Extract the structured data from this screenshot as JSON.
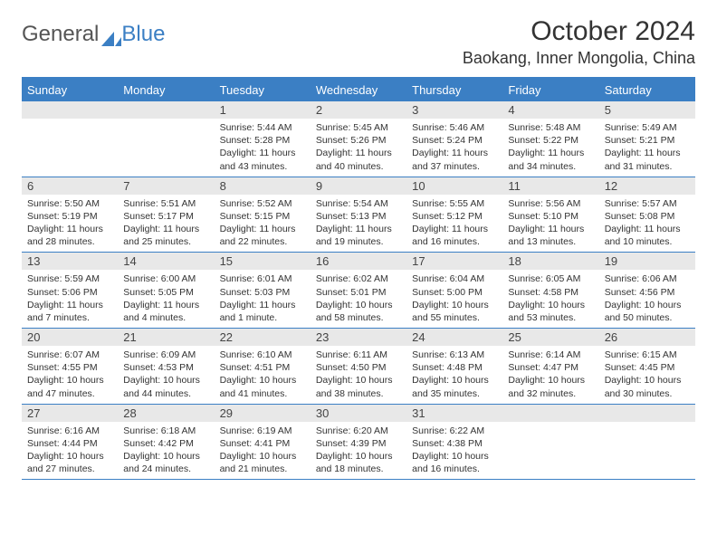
{
  "brand": {
    "part1": "General",
    "part2": "Blue"
  },
  "title": "October 2024",
  "location": "Baokang, Inner Mongolia, China",
  "colors": {
    "accent": "#3b7fc4",
    "dayHeaderBg": "#e8e8e8",
    "background": "#ffffff",
    "text": "#333333"
  },
  "typography": {
    "title_fontsize": 30,
    "location_fontsize": 18,
    "dow_fontsize": 13,
    "daynum_fontsize": 13,
    "body_fontsize": 10.5
  },
  "dow": [
    "Sunday",
    "Monday",
    "Tuesday",
    "Wednesday",
    "Thursday",
    "Friday",
    "Saturday"
  ],
  "weeks": [
    [
      {
        "n": "",
        "sr": "",
        "ss": "",
        "dl": ""
      },
      {
        "n": "",
        "sr": "",
        "ss": "",
        "dl": ""
      },
      {
        "n": "1",
        "sr": "Sunrise: 5:44 AM",
        "ss": "Sunset: 5:28 PM",
        "dl": "Daylight: 11 hours and 43 minutes."
      },
      {
        "n": "2",
        "sr": "Sunrise: 5:45 AM",
        "ss": "Sunset: 5:26 PM",
        "dl": "Daylight: 11 hours and 40 minutes."
      },
      {
        "n": "3",
        "sr": "Sunrise: 5:46 AM",
        "ss": "Sunset: 5:24 PM",
        "dl": "Daylight: 11 hours and 37 minutes."
      },
      {
        "n": "4",
        "sr": "Sunrise: 5:48 AM",
        "ss": "Sunset: 5:22 PM",
        "dl": "Daylight: 11 hours and 34 minutes."
      },
      {
        "n": "5",
        "sr": "Sunrise: 5:49 AM",
        "ss": "Sunset: 5:21 PM",
        "dl": "Daylight: 11 hours and 31 minutes."
      }
    ],
    [
      {
        "n": "6",
        "sr": "Sunrise: 5:50 AM",
        "ss": "Sunset: 5:19 PM",
        "dl": "Daylight: 11 hours and 28 minutes."
      },
      {
        "n": "7",
        "sr": "Sunrise: 5:51 AM",
        "ss": "Sunset: 5:17 PM",
        "dl": "Daylight: 11 hours and 25 minutes."
      },
      {
        "n": "8",
        "sr": "Sunrise: 5:52 AM",
        "ss": "Sunset: 5:15 PM",
        "dl": "Daylight: 11 hours and 22 minutes."
      },
      {
        "n": "9",
        "sr": "Sunrise: 5:54 AM",
        "ss": "Sunset: 5:13 PM",
        "dl": "Daylight: 11 hours and 19 minutes."
      },
      {
        "n": "10",
        "sr": "Sunrise: 5:55 AM",
        "ss": "Sunset: 5:12 PM",
        "dl": "Daylight: 11 hours and 16 minutes."
      },
      {
        "n": "11",
        "sr": "Sunrise: 5:56 AM",
        "ss": "Sunset: 5:10 PM",
        "dl": "Daylight: 11 hours and 13 minutes."
      },
      {
        "n": "12",
        "sr": "Sunrise: 5:57 AM",
        "ss": "Sunset: 5:08 PM",
        "dl": "Daylight: 11 hours and 10 minutes."
      }
    ],
    [
      {
        "n": "13",
        "sr": "Sunrise: 5:59 AM",
        "ss": "Sunset: 5:06 PM",
        "dl": "Daylight: 11 hours and 7 minutes."
      },
      {
        "n": "14",
        "sr": "Sunrise: 6:00 AM",
        "ss": "Sunset: 5:05 PM",
        "dl": "Daylight: 11 hours and 4 minutes."
      },
      {
        "n": "15",
        "sr": "Sunrise: 6:01 AM",
        "ss": "Sunset: 5:03 PM",
        "dl": "Daylight: 11 hours and 1 minute."
      },
      {
        "n": "16",
        "sr": "Sunrise: 6:02 AM",
        "ss": "Sunset: 5:01 PM",
        "dl": "Daylight: 10 hours and 58 minutes."
      },
      {
        "n": "17",
        "sr": "Sunrise: 6:04 AM",
        "ss": "Sunset: 5:00 PM",
        "dl": "Daylight: 10 hours and 55 minutes."
      },
      {
        "n": "18",
        "sr": "Sunrise: 6:05 AM",
        "ss": "Sunset: 4:58 PM",
        "dl": "Daylight: 10 hours and 53 minutes."
      },
      {
        "n": "19",
        "sr": "Sunrise: 6:06 AM",
        "ss": "Sunset: 4:56 PM",
        "dl": "Daylight: 10 hours and 50 minutes."
      }
    ],
    [
      {
        "n": "20",
        "sr": "Sunrise: 6:07 AM",
        "ss": "Sunset: 4:55 PM",
        "dl": "Daylight: 10 hours and 47 minutes."
      },
      {
        "n": "21",
        "sr": "Sunrise: 6:09 AM",
        "ss": "Sunset: 4:53 PM",
        "dl": "Daylight: 10 hours and 44 minutes."
      },
      {
        "n": "22",
        "sr": "Sunrise: 6:10 AM",
        "ss": "Sunset: 4:51 PM",
        "dl": "Daylight: 10 hours and 41 minutes."
      },
      {
        "n": "23",
        "sr": "Sunrise: 6:11 AM",
        "ss": "Sunset: 4:50 PM",
        "dl": "Daylight: 10 hours and 38 minutes."
      },
      {
        "n": "24",
        "sr": "Sunrise: 6:13 AM",
        "ss": "Sunset: 4:48 PM",
        "dl": "Daylight: 10 hours and 35 minutes."
      },
      {
        "n": "25",
        "sr": "Sunrise: 6:14 AM",
        "ss": "Sunset: 4:47 PM",
        "dl": "Daylight: 10 hours and 32 minutes."
      },
      {
        "n": "26",
        "sr": "Sunrise: 6:15 AM",
        "ss": "Sunset: 4:45 PM",
        "dl": "Daylight: 10 hours and 30 minutes."
      }
    ],
    [
      {
        "n": "27",
        "sr": "Sunrise: 6:16 AM",
        "ss": "Sunset: 4:44 PM",
        "dl": "Daylight: 10 hours and 27 minutes."
      },
      {
        "n": "28",
        "sr": "Sunrise: 6:18 AM",
        "ss": "Sunset: 4:42 PM",
        "dl": "Daylight: 10 hours and 24 minutes."
      },
      {
        "n": "29",
        "sr": "Sunrise: 6:19 AM",
        "ss": "Sunset: 4:41 PM",
        "dl": "Daylight: 10 hours and 21 minutes."
      },
      {
        "n": "30",
        "sr": "Sunrise: 6:20 AM",
        "ss": "Sunset: 4:39 PM",
        "dl": "Daylight: 10 hours and 18 minutes."
      },
      {
        "n": "31",
        "sr": "Sunrise: 6:22 AM",
        "ss": "Sunset: 4:38 PM",
        "dl": "Daylight: 10 hours and 16 minutes."
      },
      {
        "n": "",
        "sr": "",
        "ss": "",
        "dl": ""
      },
      {
        "n": "",
        "sr": "",
        "ss": "",
        "dl": ""
      }
    ]
  ]
}
